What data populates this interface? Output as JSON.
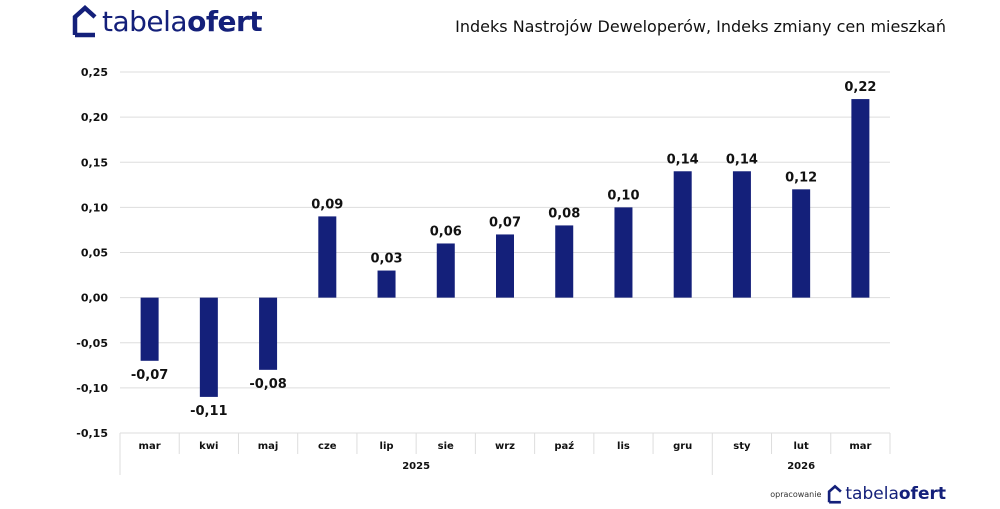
{
  "brand": {
    "name_light": "tabela",
    "name_bold": "ofert",
    "footer_credit": "opracowanie",
    "color": "#14207a"
  },
  "header": {
    "title": "Indeks Nastrojów Deweloperów, Indeks zmiany cen mieszkań"
  },
  "chart_data": {
    "type": "bar",
    "title": "Indeks Nastrojów Deweloperów, Indeks zmiany cen mieszkań",
    "xlabel": "",
    "ylabel": "",
    "categories": [
      "mar",
      "kwi",
      "maj",
      "cze",
      "lip",
      "sie",
      "wrz",
      "paź",
      "lis",
      "gru",
      "sty",
      "lut",
      "mar"
    ],
    "groups": [
      {
        "label": "2025",
        "count": 10
      },
      {
        "label": "2026",
        "count": 3
      }
    ],
    "values": [
      -0.07,
      -0.11,
      -0.08,
      0.09,
      0.03,
      0.06,
      0.07,
      0.08,
      0.1,
      0.14,
      0.14,
      0.12,
      0.22
    ],
    "data_labels": [
      "-0,07",
      "-0,11",
      "-0,08",
      "0,09",
      "0,03",
      "0,06",
      "0,07",
      "0,08",
      "0,10",
      "0,14",
      "0,14",
      "0,12",
      "0,22"
    ],
    "ylim": [
      -0.15,
      0.25
    ],
    "yticks": [
      0.25,
      0.2,
      0.15,
      0.1,
      0.05,
      0.0,
      -0.05,
      -0.1,
      -0.15
    ],
    "ytick_labels": [
      "0,25",
      "0,20",
      "0,15",
      "0,10",
      "0,05",
      "0,00",
      "-0,05",
      "-0,10",
      "-0,15"
    ],
    "grid": true,
    "legend": "none",
    "bar_color": "#14207a",
    "grid_color": "#dddddd"
  }
}
